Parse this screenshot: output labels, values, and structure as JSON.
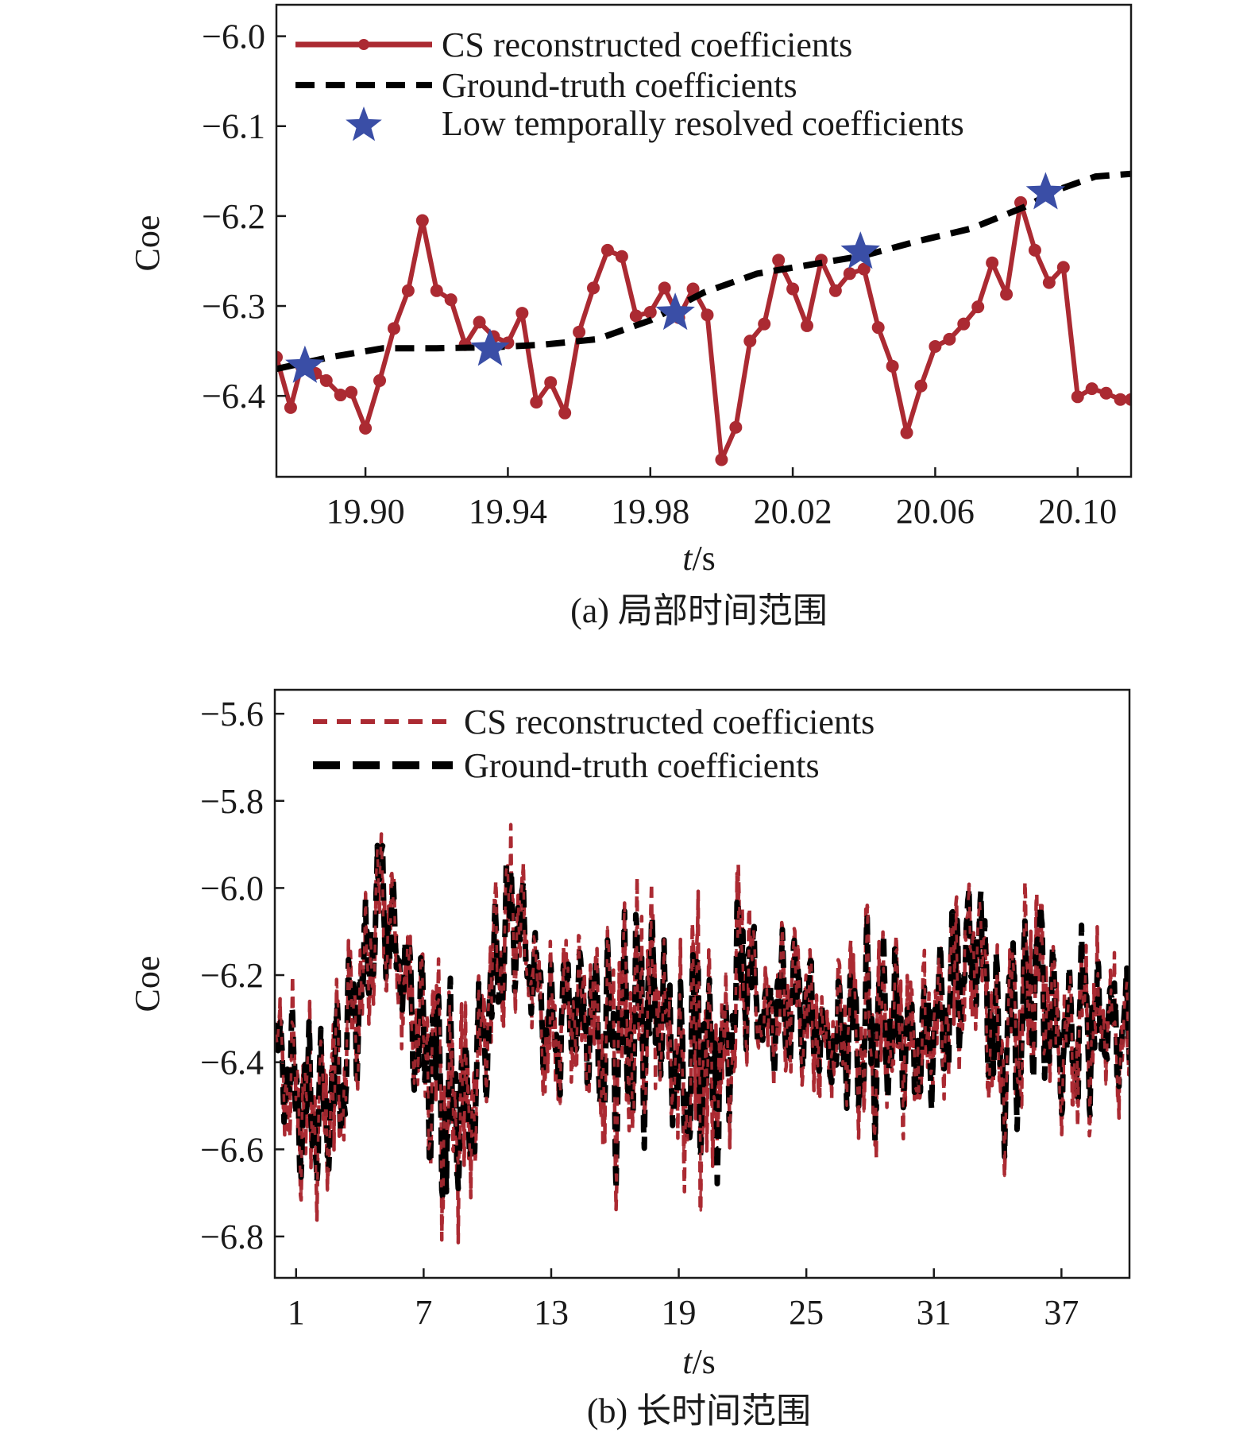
{
  "colors": {
    "cs": "#ab2a32",
    "truth": "#000000",
    "star": "#3a4ea6",
    "axis": "#1a1a1a"
  },
  "chart_data": [
    {
      "type": "line",
      "ylabel": "Coe",
      "xlabel_italic": "t",
      "xlabel_unit": "/s",
      "caption": "(a) 局部时间范围",
      "xlim": [
        19.875,
        20.115
      ],
      "ylim": [
        -6.49,
        -5.965
      ],
      "xticks": [
        19.9,
        19.94,
        19.98,
        20.02,
        20.06,
        20.1
      ],
      "xtick_labels": [
        "19.90",
        "19.94",
        "19.98",
        "20.02",
        "20.06",
        "20.10"
      ],
      "yticks": [
        -6.0,
        -6.1,
        -6.2,
        -6.3,
        -6.4
      ],
      "ytick_labels": [
        "−6.0",
        "−6.1",
        "−6.2",
        "−6.3",
        "−6.4"
      ],
      "legend_position": "top-left",
      "series": [
        {
          "name": "CS reconstructed coefficients",
          "style": "solid-markers",
          "x": [
            19.875,
            19.879,
            19.882,
            19.886,
            19.889,
            19.893,
            19.896,
            19.9,
            19.904,
            19.908,
            19.912,
            19.916,
            19.92,
            19.924,
            19.928,
            19.932,
            19.936,
            19.94,
            19.944,
            19.948,
            19.952,
            19.956,
            19.96,
            19.964,
            19.968,
            19.972,
            19.976,
            19.98,
            19.984,
            19.988,
            19.992,
            19.996,
            20.0,
            20.004,
            20.008,
            20.012,
            20.016,
            20.02,
            20.024,
            20.028,
            20.032,
            20.036,
            20.04,
            20.044,
            20.048,
            20.052,
            20.056,
            20.06,
            20.064,
            20.068,
            20.072,
            20.076,
            20.08,
            20.084,
            20.088,
            20.092,
            20.096,
            20.1,
            20.104,
            20.108,
            20.112,
            20.115
          ],
          "y": [
            -6.357,
            -6.413,
            -6.367,
            -6.375,
            -6.383,
            -6.399,
            -6.396,
            -6.436,
            -6.383,
            -6.325,
            -6.283,
            -6.205,
            -6.283,
            -6.293,
            -6.343,
            -6.318,
            -6.334,
            -6.341,
            -6.308,
            -6.407,
            -6.385,
            -6.419,
            -6.329,
            -6.28,
            -6.238,
            -6.245,
            -6.311,
            -6.307,
            -6.28,
            -6.313,
            -6.281,
            -6.31,
            -6.471,
            -6.435,
            -6.339,
            -6.32,
            -6.249,
            -6.281,
            -6.322,
            -6.249,
            -6.283,
            -6.264,
            -6.259,
            -6.324,
            -6.367,
            -6.441,
            -6.389,
            -6.345,
            -6.337,
            -6.32,
            -6.301,
            -6.252,
            -6.287,
            -6.185,
            -6.238,
            -6.274,
            -6.257,
            -6.401,
            -6.392,
            -6.397,
            -6.404,
            -6.404
          ]
        },
        {
          "name": "Ground-truth coefficients",
          "style": "dashed",
          "x": [
            19.875,
            19.89,
            19.905,
            19.92,
            19.935,
            19.95,
            19.965,
            19.98,
            19.995,
            20.01,
            20.025,
            20.04,
            20.055,
            20.07,
            20.085,
            20.095,
            20.105,
            20.115
          ],
          "y": [
            -6.37,
            -6.357,
            -6.347,
            -6.347,
            -6.346,
            -6.343,
            -6.337,
            -6.316,
            -6.285,
            -6.264,
            -6.254,
            -6.244,
            -6.228,
            -6.214,
            -6.19,
            -6.17,
            -6.156,
            -6.153
          ]
        },
        {
          "name": "Low temporally resolved coefficients",
          "style": "star",
          "x": [
            19.883,
            19.935,
            19.987,
            20.039,
            20.091
          ],
          "y": [
            -6.367,
            -6.348,
            -6.308,
            -6.24,
            -6.174
          ]
        }
      ]
    },
    {
      "type": "line",
      "ylabel": "Coe",
      "xlabel_italic": "t",
      "xlabel_unit": "/s",
      "caption": "(b) 长时间范围",
      "xlim": [
        0.0,
        40.2
      ],
      "ylim": [
        -6.895,
        -5.545
      ],
      "xticks": [
        1,
        7,
        13,
        19,
        25,
        31,
        37
      ],
      "xtick_labels": [
        "1",
        "7",
        "13",
        "19",
        "25",
        "31",
        "37"
      ],
      "yticks": [
        -5.6,
        -5.8,
        -6.0,
        -6.2,
        -6.4,
        -6.6,
        -6.8
      ],
      "ytick_labels": [
        "−5.6",
        "−5.8",
        "−6.0",
        "−6.2",
        "−6.4",
        "−6.6",
        "−6.8"
      ],
      "legend_position": "top-left",
      "envelope_t": [
        0,
        1,
        2,
        3,
        4,
        5,
        6,
        7,
        8,
        9,
        10,
        11,
        12,
        13,
        14,
        15,
        16,
        17,
        18,
        19,
        20,
        21,
        22,
        23,
        24,
        25,
        26,
        27,
        28,
        29,
        30,
        31,
        32,
        33,
        34,
        35,
        36,
        37,
        38,
        39,
        40
      ],
      "envelope_hi": [
        -6.28,
        -6.2,
        -6.3,
        -6.18,
        -6.08,
        -5.78,
        -6.02,
        -6.1,
        -6.15,
        -6.28,
        -6.08,
        -5.84,
        -6.02,
        -6.12,
        -6.08,
        -6.1,
        -6.02,
        -5.98,
        -6.0,
        -6.15,
        -6.0,
        -6.15,
        -5.92,
        -6.18,
        -6.05,
        -6.1,
        -6.25,
        -6.12,
        -6.05,
        -6.05,
        -6.18,
        -6.15,
        -5.98,
        -5.9,
        -6.08,
        -6.05,
        -5.88,
        -6.2,
        -6.02,
        -6.15,
        -6.15
      ],
      "envelope_lo": [
        -6.45,
        -6.72,
        -6.76,
        -6.68,
        -6.42,
        -6.22,
        -6.38,
        -6.6,
        -6.82,
        -6.84,
        -6.5,
        -6.25,
        -6.3,
        -6.55,
        -6.45,
        -6.55,
        -6.72,
        -6.68,
        -6.5,
        -6.7,
        -6.72,
        -6.72,
        -6.4,
        -6.4,
        -6.5,
        -6.45,
        -6.5,
        -6.55,
        -6.62,
        -6.55,
        -6.56,
        -6.52,
        -6.48,
        -6.3,
        -6.66,
        -6.6,
        -6.48,
        -6.55,
        -6.58,
        -6.48,
        -6.52
      ],
      "series": [
        {
          "name": "CS reconstructed coefficients",
          "style": "dashed-thin"
        },
        {
          "name": "Ground-truth coefficients",
          "style": "dashed-thick"
        }
      ]
    }
  ]
}
